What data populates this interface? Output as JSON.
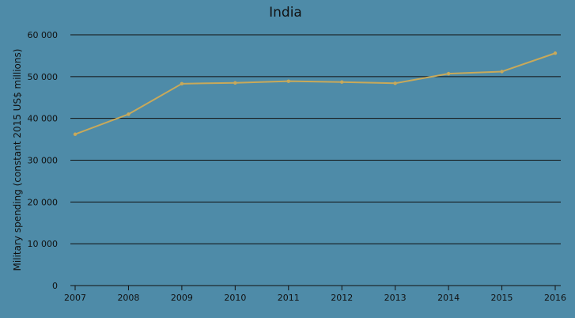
{
  "chart_data": {
    "type": "line",
    "title": "India",
    "xlabel": "",
    "ylabel": "Military spending (constant 2015 US$ millions)",
    "x": [
      2007,
      2008,
      2009,
      2010,
      2011,
      2012,
      2013,
      2014,
      2015,
      2016
    ],
    "series": [
      {
        "name": "",
        "values": [
          36200,
          41000,
          48300,
          48500,
          48900,
          48700,
          48400,
          50700,
          51200,
          55600
        ]
      }
    ],
    "ylim": [
      0,
      60000
    ],
    "yticks": [
      0,
      10000,
      20000,
      30000,
      40000,
      50000,
      60000
    ],
    "ytick_labels": [
      "0",
      "10 000",
      "20 000",
      "30 000",
      "40 000",
      "50 000",
      "60 000"
    ],
    "xtick_labels": [
      "2007",
      "2008",
      "2009",
      "2010",
      "2011",
      "2012",
      "2013",
      "2014",
      "2015",
      "2016"
    ],
    "grid": "horizontal",
    "legend": "none",
    "colors": {
      "background": "#4e8ba8",
      "line": "#c8a95a",
      "grid": "#111111",
      "text": "#111111"
    }
  }
}
